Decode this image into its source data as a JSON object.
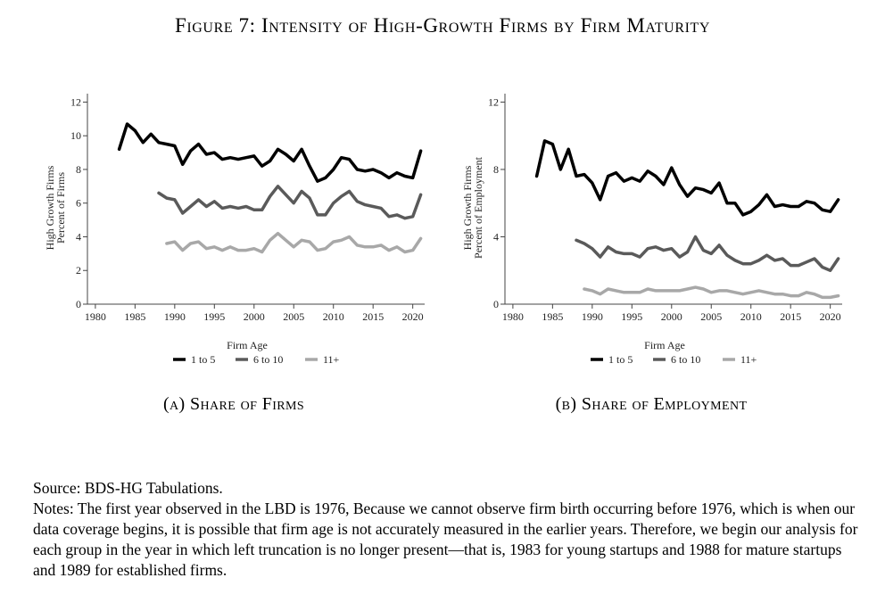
{
  "figure_title": "Figure 7: Intensity of High-Growth Firms by Firm Maturity",
  "captions": {
    "a": "(a) Share of Firms",
    "b": "(b) Share of Employment"
  },
  "source": "Source: BDS-HG Tabulations.",
  "notes": "Notes: The first year observed in the LBD is 1976, Because we cannot observe firm birth occurring before 1976, which is when our data coverage begins, it is possible that firm age is not accurately measured in the earlier years. Therefore, we begin our analysis for each group in the year in which left truncation is no longer present—that is, 1983 for young startups and 1988 for mature startups and 1989 for established firms.",
  "colors": {
    "1 to 5": "#000000",
    "6 to 10": "#5a5a5a",
    "11+": "#a8a8a8"
  },
  "chart_data": [
    {
      "type": "line",
      "panel": "a",
      "title": "(a) Share of Firms",
      "xlabel": "Firm Age",
      "ylabel": [
        "High Growth Firms",
        "Percent of Firms"
      ],
      "xlim": [
        1979,
        2021.5
      ],
      "ylim": [
        0,
        12.5
      ],
      "xticks": [
        1980,
        1985,
        1990,
        1995,
        2000,
        2005,
        2010,
        2015,
        2020
      ],
      "yticks": [
        0,
        2,
        4,
        6,
        8,
        10,
        12
      ],
      "legend_title": "Firm Age",
      "legend_position": "bottom",
      "series": [
        {
          "name": "1 to 5",
          "start": 1983,
          "values": [
            9.2,
            10.7,
            10.3,
            9.6,
            10.1,
            9.6,
            9.5,
            9.4,
            8.3,
            9.1,
            9.5,
            8.9,
            9.0,
            8.6,
            8.7,
            8.6,
            8.7,
            8.8,
            8.2,
            8.5,
            9.2,
            8.9,
            8.5,
            9.2,
            8.2,
            7.3,
            7.5,
            8.0,
            8.7,
            8.6,
            8.0,
            7.9,
            8.0,
            7.8,
            7.5,
            7.8,
            7.6,
            7.5,
            9.1
          ]
        },
        {
          "name": "6 to 10",
          "start": 1988,
          "values": [
            6.6,
            6.3,
            6.2,
            5.4,
            5.8,
            6.2,
            5.8,
            6.1,
            5.7,
            5.8,
            5.7,
            5.8,
            5.6,
            5.6,
            6.4,
            7.0,
            6.5,
            6.0,
            6.7,
            6.3,
            5.3,
            5.3,
            6.0,
            6.4,
            6.7,
            6.1,
            5.9,
            5.8,
            5.7,
            5.2,
            5.3,
            5.1,
            5.2,
            6.5
          ]
        },
        {
          "name": "11+",
          "start": 1989,
          "values": [
            3.6,
            3.7,
            3.2,
            3.6,
            3.7,
            3.3,
            3.4,
            3.2,
            3.4,
            3.2,
            3.2,
            3.3,
            3.1,
            3.8,
            4.2,
            3.8,
            3.4,
            3.8,
            3.7,
            3.2,
            3.3,
            3.7,
            3.8,
            4.0,
            3.5,
            3.4,
            3.4,
            3.5,
            3.2,
            3.4,
            3.1,
            3.2,
            3.9
          ]
        }
      ]
    },
    {
      "type": "line",
      "panel": "b",
      "title": "(b) Share of Employment",
      "xlabel": "Firm Age",
      "ylabel": [
        "High Growth Firms",
        "Percent of Employment"
      ],
      "xlim": [
        1979,
        2021.5
      ],
      "ylim": [
        0,
        12.5
      ],
      "xticks": [
        1980,
        1985,
        1990,
        1995,
        2000,
        2005,
        2010,
        2015,
        2020
      ],
      "yticks": [
        0,
        4,
        8,
        12
      ],
      "legend_title": "Firm Age",
      "legend_position": "bottom",
      "series": [
        {
          "name": "1 to 5",
          "start": 1983,
          "values": [
            7.6,
            9.7,
            9.5,
            8.0,
            9.2,
            7.6,
            7.7,
            7.2,
            6.2,
            7.6,
            7.8,
            7.3,
            7.5,
            7.3,
            7.9,
            7.6,
            7.1,
            8.1,
            7.1,
            6.4,
            6.9,
            6.8,
            6.6,
            7.2,
            6.0,
            6.0,
            5.3,
            5.5,
            5.9,
            6.5,
            5.8,
            5.9,
            5.8,
            5.8,
            6.1,
            6.0,
            5.6,
            5.5,
            6.2
          ]
        },
        {
          "name": "6 to 10",
          "start": 1988,
          "values": [
            3.8,
            3.6,
            3.3,
            2.8,
            3.4,
            3.1,
            3.0,
            3.0,
            2.8,
            3.3,
            3.4,
            3.2,
            3.3,
            2.8,
            3.1,
            4.0,
            3.2,
            3.0,
            3.5,
            2.9,
            2.6,
            2.4,
            2.4,
            2.6,
            2.9,
            2.6,
            2.7,
            2.3,
            2.3,
            2.5,
            2.7,
            2.2,
            2.0,
            2.7
          ]
        },
        {
          "name": "11+",
          "start": 1989,
          "values": [
            0.9,
            0.8,
            0.6,
            0.9,
            0.8,
            0.7,
            0.7,
            0.7,
            0.9,
            0.8,
            0.8,
            0.8,
            0.8,
            0.9,
            1.0,
            0.9,
            0.7,
            0.8,
            0.8,
            0.7,
            0.6,
            0.7,
            0.8,
            0.7,
            0.6,
            0.6,
            0.5,
            0.5,
            0.7,
            0.6,
            0.4,
            0.4,
            0.5
          ]
        }
      ]
    }
  ]
}
